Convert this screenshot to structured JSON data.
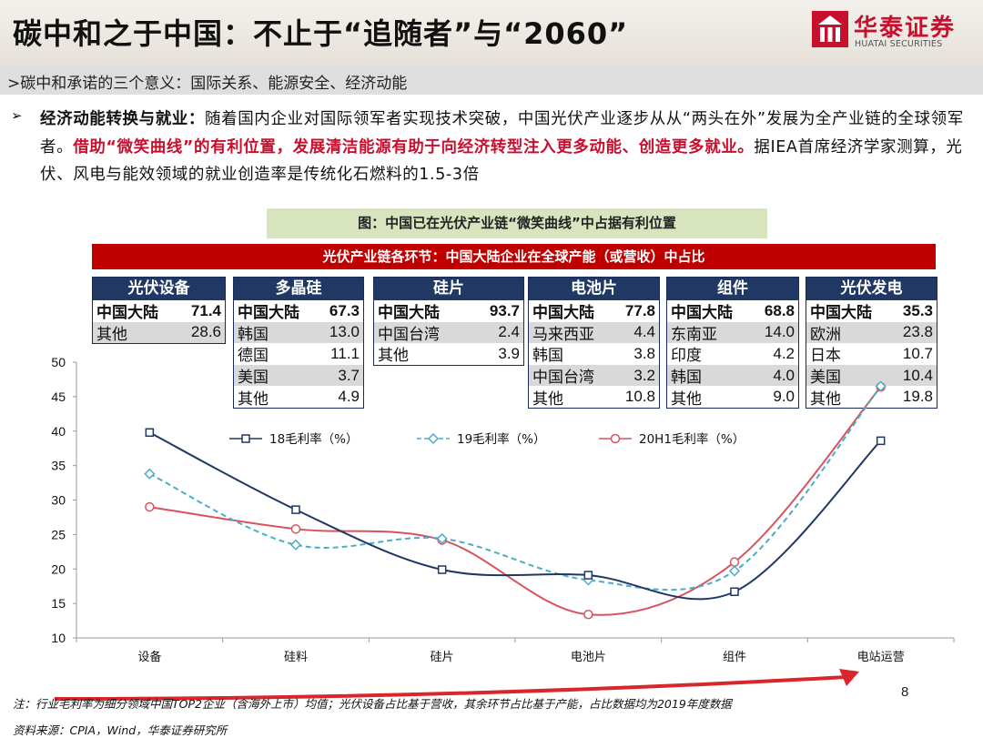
{
  "header": {
    "title": "碳中和之于中国：不止于“追随者”与“2060”"
  },
  "logo": {
    "cn": "华泰证券",
    "en": "HUATAI SECURITIES"
  },
  "subheader": ">碳中和承诺的三个意义：国际关系、能源安全、经济动能",
  "bullet": "➢",
  "body": {
    "lead": "经济动能转换与就业：",
    "text1": "随着国内企业对国际领军者实现技术突破，中国光伏产业逐步从从“两头在外”发展为全产业链的全球领军者。",
    "highlight": "借助“微笑曲线”的有利位置，发展清洁能源有助于向经济转型注入更多动能、创造更多就业。",
    "text2": "据IEA首席经济学家测算，光伏、风电与能效领域的就业创造率是传统化石燃料的1.5-3倍"
  },
  "figure_caption": "图：中国已在光伏产业链“微笑曲线”中占据有利位置",
  "red_bar": "光伏产业链各环节：中国大陆企业在全球产能（或营收）中占比",
  "share_tables": [
    {
      "title": "光伏设备",
      "rows": [
        [
          "中国大陆",
          "71.4"
        ],
        [
          "其他",
          "28.6"
        ]
      ]
    },
    {
      "title": "多晶硅",
      "rows": [
        [
          "中国大陆",
          "67.3"
        ],
        [
          "韩国",
          "13.0"
        ],
        [
          "德国",
          "11.1"
        ],
        [
          "美国",
          "3.7"
        ],
        [
          "其他",
          "4.9"
        ]
      ]
    },
    {
      "title": "硅片",
      "rows": [
        [
          "中国大陆",
          "93.7"
        ],
        [
          "中国台湾",
          "2.4"
        ],
        [
          "其他",
          "3.9"
        ]
      ]
    },
    {
      "title": "电池片",
      "rows": [
        [
          "中国大陆",
          "77.8"
        ],
        [
          "马来西亚",
          "4.4"
        ],
        [
          "韩国",
          "3.8"
        ],
        [
          "中国台湾",
          "3.2"
        ],
        [
          "其他",
          "10.8"
        ]
      ]
    },
    {
      "title": "组件",
      "rows": [
        [
          "中国大陆",
          "68.8"
        ],
        [
          "东南亚",
          "14.0"
        ],
        [
          "印度",
          "4.2"
        ],
        [
          "韩国",
          "4.0"
        ],
        [
          "其他",
          "9.0"
        ]
      ]
    },
    {
      "title": "光伏发电",
      "rows": [
        [
          "中国大陆",
          "35.3"
        ],
        [
          "欧洲",
          "23.8"
        ],
        [
          "日本",
          "10.7"
        ],
        [
          "美国",
          "10.4"
        ],
        [
          "其他",
          "19.8"
        ]
      ]
    }
  ],
  "chart_data": {
    "type": "line",
    "categories": [
      "设备",
      "硅料",
      "硅片",
      "电池片",
      "组件",
      "电站运营"
    ],
    "series": [
      {
        "name": "18毛利率（%）",
        "values": [
          39.8,
          28.6,
          19.9,
          19.1,
          16.7,
          38.6
        ],
        "color": "#1f3864",
        "style": "solid",
        "marker": "square"
      },
      {
        "name": "19毛利率（%）",
        "values": [
          33.8,
          23.5,
          24.4,
          18.4,
          19.7,
          46.5
        ],
        "color": "#4bacc6",
        "style": "dashed",
        "marker": "diamond"
      },
      {
        "name": "20H1毛利率（%）",
        "values": [
          29.0,
          25.8,
          24.2,
          13.4,
          21.0,
          46.4
        ],
        "color": "#d9525e",
        "style": "solid",
        "marker": "circle"
      }
    ],
    "ylim": [
      10,
      50
    ],
    "yticks": [
      "10",
      "15",
      "20",
      "25",
      "30",
      "35",
      "40",
      "45",
      "50"
    ],
    "grid": false,
    "legend_position": "top"
  },
  "note": "注：行业毛利率为细分领域中国TOP2企业（含海外上市）均值；光伏设备占比基于营收，其余环节占比基于产能，占比数据均为2019年度数据",
  "source": "资料来源：CPIA，Wind，华泰证券研究所",
  "page_number": "8",
  "colors": {
    "brand_red": "#c8102e",
    "table_head": "#1f3864",
    "caption_bg": "#d7e4bd"
  }
}
